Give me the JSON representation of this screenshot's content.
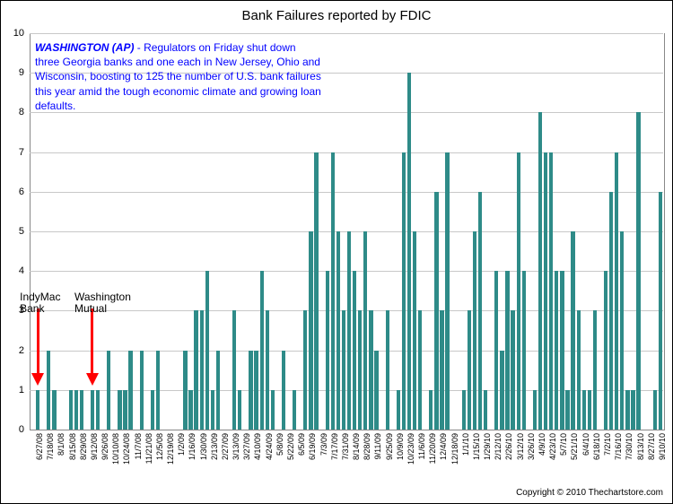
{
  "title": "Bank Failures reported by FDIC",
  "copyright": "Copyright © 2010 Thechartstore.com",
  "annotation": {
    "lead": "WASHINGTON (AP)",
    "body": " - Regulators on Friday shut down three Georgia banks and one each in New Jersey, Ohio and Wisconsin, boosting to 125 the number of U.S. bank failures this year amid the tough economic climate and growing loan defaults."
  },
  "callouts": [
    {
      "line1": "IndyMac",
      "line2": "Bank",
      "target_date": "7/11/08"
    },
    {
      "line1": "Washington",
      "line2": "Mutual",
      "target_date": "9/19/08"
    }
  ],
  "chart": {
    "type": "bar",
    "ylim": [
      0,
      10
    ],
    "ytick_step": 1,
    "bar_color": "#2e8b88",
    "grid_color": "#c8c8c8",
    "background": "#ffffff",
    "title_fontsize": 15,
    "xlabel_fontsize": 9,
    "ylabel_fontsize": 11,
    "xlabel_every": 2,
    "data": [
      {
        "d": "6/27/08",
        "v": 0
      },
      {
        "d": "7/11/08",
        "v": 1
      },
      {
        "d": "7/18/08",
        "v": 0
      },
      {
        "d": "7/25/08",
        "v": 2
      },
      {
        "d": "8/1/08",
        "v": 1
      },
      {
        "d": "8/8/08",
        "v": 0
      },
      {
        "d": "8/15/08",
        "v": 0
      },
      {
        "d": "8/22/08",
        "v": 1
      },
      {
        "d": "8/29/08",
        "v": 1
      },
      {
        "d": "9/5/08",
        "v": 1
      },
      {
        "d": "9/12/08",
        "v": 0
      },
      {
        "d": "9/19/08",
        "v": 1
      },
      {
        "d": "9/26/08",
        "v": 1
      },
      {
        "d": "10/3/08",
        "v": 0
      },
      {
        "d": "10/10/08",
        "v": 2
      },
      {
        "d": "10/17/08",
        "v": 0
      },
      {
        "d": "10/24/08",
        "v": 1
      },
      {
        "d": "10/31/08",
        "v": 1
      },
      {
        "d": "11/7/08",
        "v": 2
      },
      {
        "d": "11/14/08",
        "v": 0
      },
      {
        "d": "11/21/08",
        "v": 2
      },
      {
        "d": "11/28/08",
        "v": 0
      },
      {
        "d": "12/5/08",
        "v": 1
      },
      {
        "d": "12/12/08",
        "v": 2
      },
      {
        "d": "12/19/08",
        "v": 0
      },
      {
        "d": "12/26/08",
        "v": 0
      },
      {
        "d": "1/2/09",
        "v": 0
      },
      {
        "d": "1/9/09",
        "v": 0
      },
      {
        "d": "1/16/09",
        "v": 2
      },
      {
        "d": "1/23/09",
        "v": 1
      },
      {
        "d": "1/30/09",
        "v": 3
      },
      {
        "d": "2/6/09",
        "v": 3
      },
      {
        "d": "2/13/09",
        "v": 4
      },
      {
        "d": "2/20/09",
        "v": 1
      },
      {
        "d": "2/27/09",
        "v": 2
      },
      {
        "d": "3/6/09",
        "v": 0
      },
      {
        "d": "3/13/09",
        "v": 0
      },
      {
        "d": "3/20/09",
        "v": 3
      },
      {
        "d": "3/27/09",
        "v": 1
      },
      {
        "d": "4/3/09",
        "v": 0
      },
      {
        "d": "4/10/09",
        "v": 2
      },
      {
        "d": "4/17/09",
        "v": 2
      },
      {
        "d": "4/24/09",
        "v": 4
      },
      {
        "d": "5/1/09",
        "v": 3
      },
      {
        "d": "5/8/09",
        "v": 1
      },
      {
        "d": "5/15/09",
        "v": 0
      },
      {
        "d": "5/22/09",
        "v": 2
      },
      {
        "d": "5/29/09",
        "v": 0
      },
      {
        "d": "6/5/09",
        "v": 1
      },
      {
        "d": "6/12/09",
        "v": 0
      },
      {
        "d": "6/19/09",
        "v": 3
      },
      {
        "d": "6/26/09",
        "v": 5
      },
      {
        "d": "7/3/09",
        "v": 7
      },
      {
        "d": "7/10/09",
        "v": 0
      },
      {
        "d": "7/17/09",
        "v": 4
      },
      {
        "d": "7/24/09",
        "v": 7
      },
      {
        "d": "7/31/09",
        "v": 5
      },
      {
        "d": "8/7/09",
        "v": 3
      },
      {
        "d": "8/14/09",
        "v": 5
      },
      {
        "d": "8/21/09",
        "v": 4
      },
      {
        "d": "8/28/09",
        "v": 3
      },
      {
        "d": "9/4/09",
        "v": 5
      },
      {
        "d": "9/11/09",
        "v": 3
      },
      {
        "d": "9/18/09",
        "v": 2
      },
      {
        "d": "9/25/09",
        "v": 0
      },
      {
        "d": "10/2/09",
        "v": 3
      },
      {
        "d": "10/9/09",
        "v": 0
      },
      {
        "d": "10/16/09",
        "v": 1
      },
      {
        "d": "10/23/09",
        "v": 7
      },
      {
        "d": "10/30/09",
        "v": 9
      },
      {
        "d": "11/6/09",
        "v": 5
      },
      {
        "d": "11/13/09",
        "v": 3
      },
      {
        "d": "11/20/09",
        "v": 0
      },
      {
        "d": "11/27/09",
        "v": 1
      },
      {
        "d": "12/4/09",
        "v": 6
      },
      {
        "d": "12/11/09",
        "v": 3
      },
      {
        "d": "12/18/09",
        "v": 7
      },
      {
        "d": "12/24/09",
        "v": 0
      },
      {
        "d": "1/1/10",
        "v": 0
      },
      {
        "d": "1/8/10",
        "v": 1
      },
      {
        "d": "1/15/10",
        "v": 3
      },
      {
        "d": "1/22/10",
        "v": 5
      },
      {
        "d": "1/29/10",
        "v": 6
      },
      {
        "d": "2/5/10",
        "v": 1
      },
      {
        "d": "2/12/10",
        "v": 0
      },
      {
        "d": "2/19/10",
        "v": 4
      },
      {
        "d": "2/26/10",
        "v": 2
      },
      {
        "d": "3/5/10",
        "v": 4
      },
      {
        "d": "3/12/10",
        "v": 3
      },
      {
        "d": "3/19/10",
        "v": 7
      },
      {
        "d": "3/26/10",
        "v": 4
      },
      {
        "d": "4/2/10",
        "v": 0
      },
      {
        "d": "4/9/10",
        "v": 1
      },
      {
        "d": "4/16/10",
        "v": 8
      },
      {
        "d": "4/23/10",
        "v": 7
      },
      {
        "d": "4/30/10",
        "v": 7
      },
      {
        "d": "5/7/10",
        "v": 4
      },
      {
        "d": "5/14/10",
        "v": 4
      },
      {
        "d": "5/21/10",
        "v": 1
      },
      {
        "d": "5/28/10",
        "v": 5
      },
      {
        "d": "6/4/10",
        "v": 3
      },
      {
        "d": "6/11/10",
        "v": 1
      },
      {
        "d": "6/18/10",
        "v": 1
      },
      {
        "d": "6/25/10",
        "v": 3
      },
      {
        "d": "7/2/10",
        "v": 0
      },
      {
        "d": "7/9/10",
        "v": 4
      },
      {
        "d": "7/16/10",
        "v": 6
      },
      {
        "d": "7/23/10",
        "v": 7
      },
      {
        "d": "7/30/10",
        "v": 5
      },
      {
        "d": "8/6/10",
        "v": 1
      },
      {
        "d": "8/13/10",
        "v": 1
      },
      {
        "d": "8/20/10",
        "v": 8
      },
      {
        "d": "8/27/10",
        "v": 0
      },
      {
        "d": "9/3/10",
        "v": 0
      },
      {
        "d": "9/10/10",
        "v": 1
      },
      {
        "d": "9/17/10",
        "v": 6
      }
    ]
  }
}
